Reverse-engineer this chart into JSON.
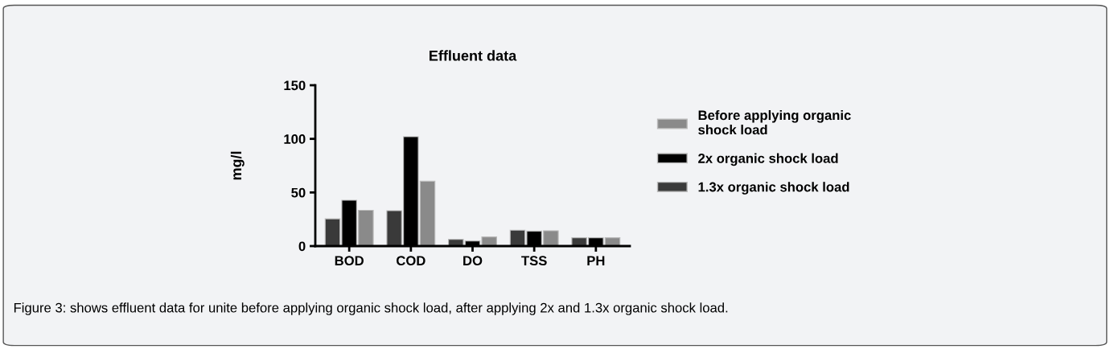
{
  "chart_data": {
    "type": "bar",
    "title": "Effluent data",
    "ylabel": "mg/l",
    "categories": [
      "BOD",
      "COD",
      "DO",
      "TSS",
      "PH"
    ],
    "series": [
      {
        "name": "Before applying organic\nshock load",
        "color": "#8a8a8a",
        "values": [
          33.4,
          60.5,
          8.5,
          14.3,
          7.8
        ]
      },
      {
        "name": "2x organic shock load",
        "color": "#000000",
        "values": [
          42.7,
          102,
          4.8,
          14,
          7.8
        ]
      },
      {
        "name": "1.3x organic shock load",
        "color": "#3a3a3a",
        "values": [
          25.4,
          33,
          6.3,
          14.8,
          7.8
        ]
      }
    ],
    "ylim": [
      0,
      150
    ],
    "yticks": [
      0,
      50,
      100,
      150
    ],
    "grid": false,
    "legend": "right",
    "annotations": [
      "Figure 3: shows effluent data for unite before applying organic shock load, after applying 2x and 1.3x organic shock load."
    ]
  }
}
